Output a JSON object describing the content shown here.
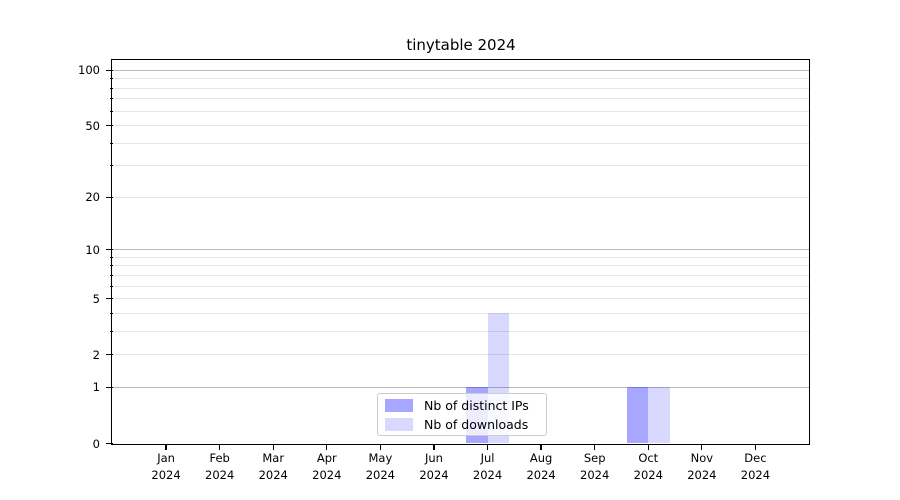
{
  "chart_data": {
    "type": "bar",
    "title": "tinytable 2024",
    "months": [
      "Jan",
      "Feb",
      "Mar",
      "Apr",
      "May",
      "Jun",
      "Jul",
      "Aug",
      "Sep",
      "Oct",
      "Nov",
      "Dec"
    ],
    "year": "2024",
    "series": [
      {
        "name": "Nb of distinct IPs",
        "color": "rgba(0,0,255,0.345)",
        "color_hex_on_white": "#a8a8ff",
        "values": [
          0,
          0,
          0,
          0,
          0,
          0,
          1,
          0,
          0,
          1,
          0,
          0
        ]
      },
      {
        "name": "Nb of downloads",
        "color": "rgba(0,0,255,0.148)",
        "color_hex_on_white": "#d9d9ff",
        "values": [
          0,
          0,
          0,
          0,
          0,
          0,
          4,
          0,
          0,
          1,
          0,
          0
        ]
      }
    ],
    "y_axis": {
      "scale": "log1p",
      "ticks": [
        0,
        1,
        2,
        5,
        10,
        20,
        50,
        100
      ],
      "decade_ticks": [
        1,
        10,
        100
      ],
      "minor_ticks": [
        3,
        4,
        6,
        7,
        8,
        9,
        30,
        40,
        60,
        70,
        80,
        90
      ],
      "max": 113
    },
    "grid": {
      "major_color": "#b9b9b9",
      "minor_color": "#e7e7e7"
    },
    "frame_color": "#000000",
    "legend": {
      "position": "lower center"
    }
  }
}
